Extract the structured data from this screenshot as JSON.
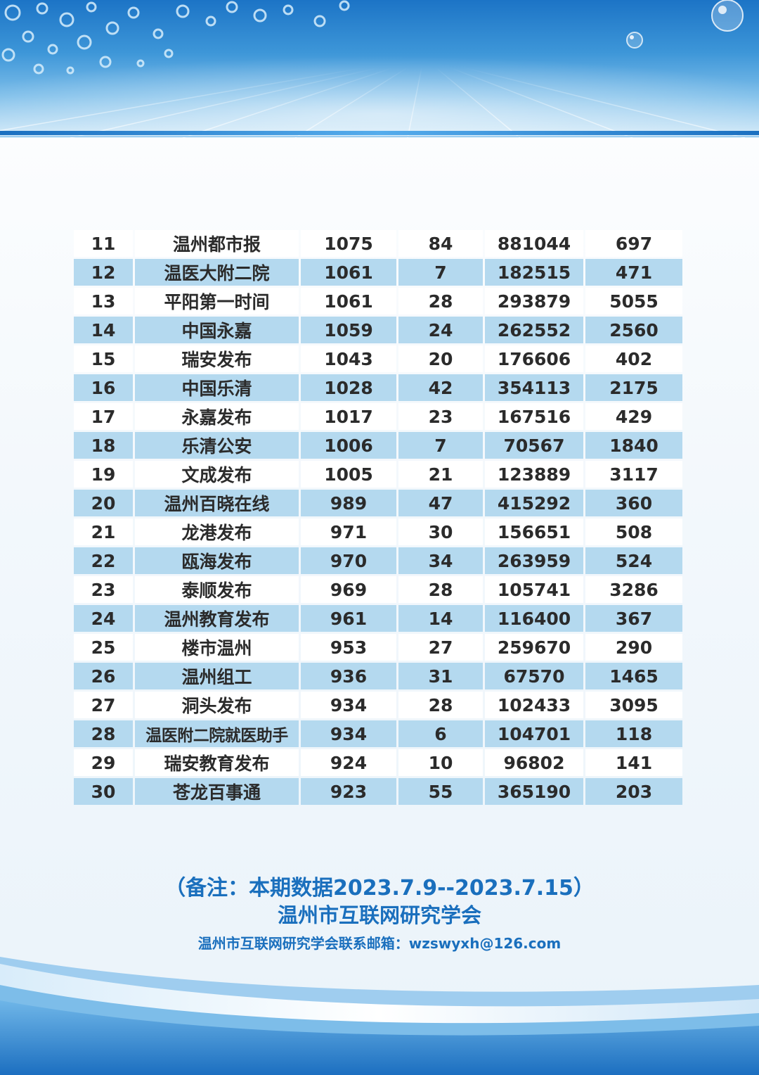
{
  "table": {
    "rows": [
      {
        "rank": "11",
        "name": "温州都市报",
        "score": "1075",
        "posts": "84",
        "reads": "881044",
        "likes": "697"
      },
      {
        "rank": "12",
        "name": "温医大附二院",
        "score": "1061",
        "posts": "7",
        "reads": "182515",
        "likes": "471"
      },
      {
        "rank": "13",
        "name": "平阳第一时间",
        "score": "1061",
        "posts": "28",
        "reads": "293879",
        "likes": "5055"
      },
      {
        "rank": "14",
        "name": "中国永嘉",
        "score": "1059",
        "posts": "24",
        "reads": "262552",
        "likes": "2560"
      },
      {
        "rank": "15",
        "name": "瑞安发布",
        "score": "1043",
        "posts": "20",
        "reads": "176606",
        "likes": "402"
      },
      {
        "rank": "16",
        "name": "中国乐清",
        "score": "1028",
        "posts": "42",
        "reads": "354113",
        "likes": "2175"
      },
      {
        "rank": "17",
        "name": "永嘉发布",
        "score": "1017",
        "posts": "23",
        "reads": "167516",
        "likes": "429"
      },
      {
        "rank": "18",
        "name": "乐清公安",
        "score": "1006",
        "posts": "7",
        "reads": "70567",
        "likes": "1840"
      },
      {
        "rank": "19",
        "name": "文成发布",
        "score": "1005",
        "posts": "21",
        "reads": "123889",
        "likes": "3117"
      },
      {
        "rank": "20",
        "name": "温州百晓在线",
        "score": "989",
        "posts": "47",
        "reads": "415292",
        "likes": "360"
      },
      {
        "rank": "21",
        "name": "龙港发布",
        "score": "971",
        "posts": "30",
        "reads": "156651",
        "likes": "508"
      },
      {
        "rank": "22",
        "name": "瓯海发布",
        "score": "970",
        "posts": "34",
        "reads": "263959",
        "likes": "524"
      },
      {
        "rank": "23",
        "name": "泰顺发布",
        "score": "969",
        "posts": "28",
        "reads": "105741",
        "likes": "3286"
      },
      {
        "rank": "24",
        "name": "温州教育发布",
        "score": "961",
        "posts": "14",
        "reads": "116400",
        "likes": "367"
      },
      {
        "rank": "25",
        "name": "楼市温州",
        "score": "953",
        "posts": "27",
        "reads": "259670",
        "likes": "290"
      },
      {
        "rank": "26",
        "name": "温州组工",
        "score": "936",
        "posts": "31",
        "reads": "67570",
        "likes": "1465"
      },
      {
        "rank": "27",
        "name": "洞头发布",
        "score": "934",
        "posts": "28",
        "reads": "102433",
        "likes": "3095"
      },
      {
        "rank": "28",
        "name": "温医附二院就医助手",
        "score": "934",
        "posts": "6",
        "reads": "104701",
        "likes": "118"
      },
      {
        "rank": "29",
        "name": "瑞安教育发布",
        "score": "924",
        "posts": "10",
        "reads": "96802",
        "likes": "141"
      },
      {
        "rank": "30",
        "name": "苍龙百事通",
        "score": "923",
        "posts": "55",
        "reads": "365190",
        "likes": "203"
      }
    ]
  },
  "footer": {
    "note": "（备注：本期数据2023.7.9--2023.7.15）",
    "organization": "温州市互联网研究学会",
    "email": "温州市互联网研究学会联系邮箱：wzswyxh@126.com"
  },
  "colors": {
    "accent_blue": "#1a6fbd",
    "row_stripe": "#b4d9ef",
    "row_plain": "#ffffff"
  }
}
